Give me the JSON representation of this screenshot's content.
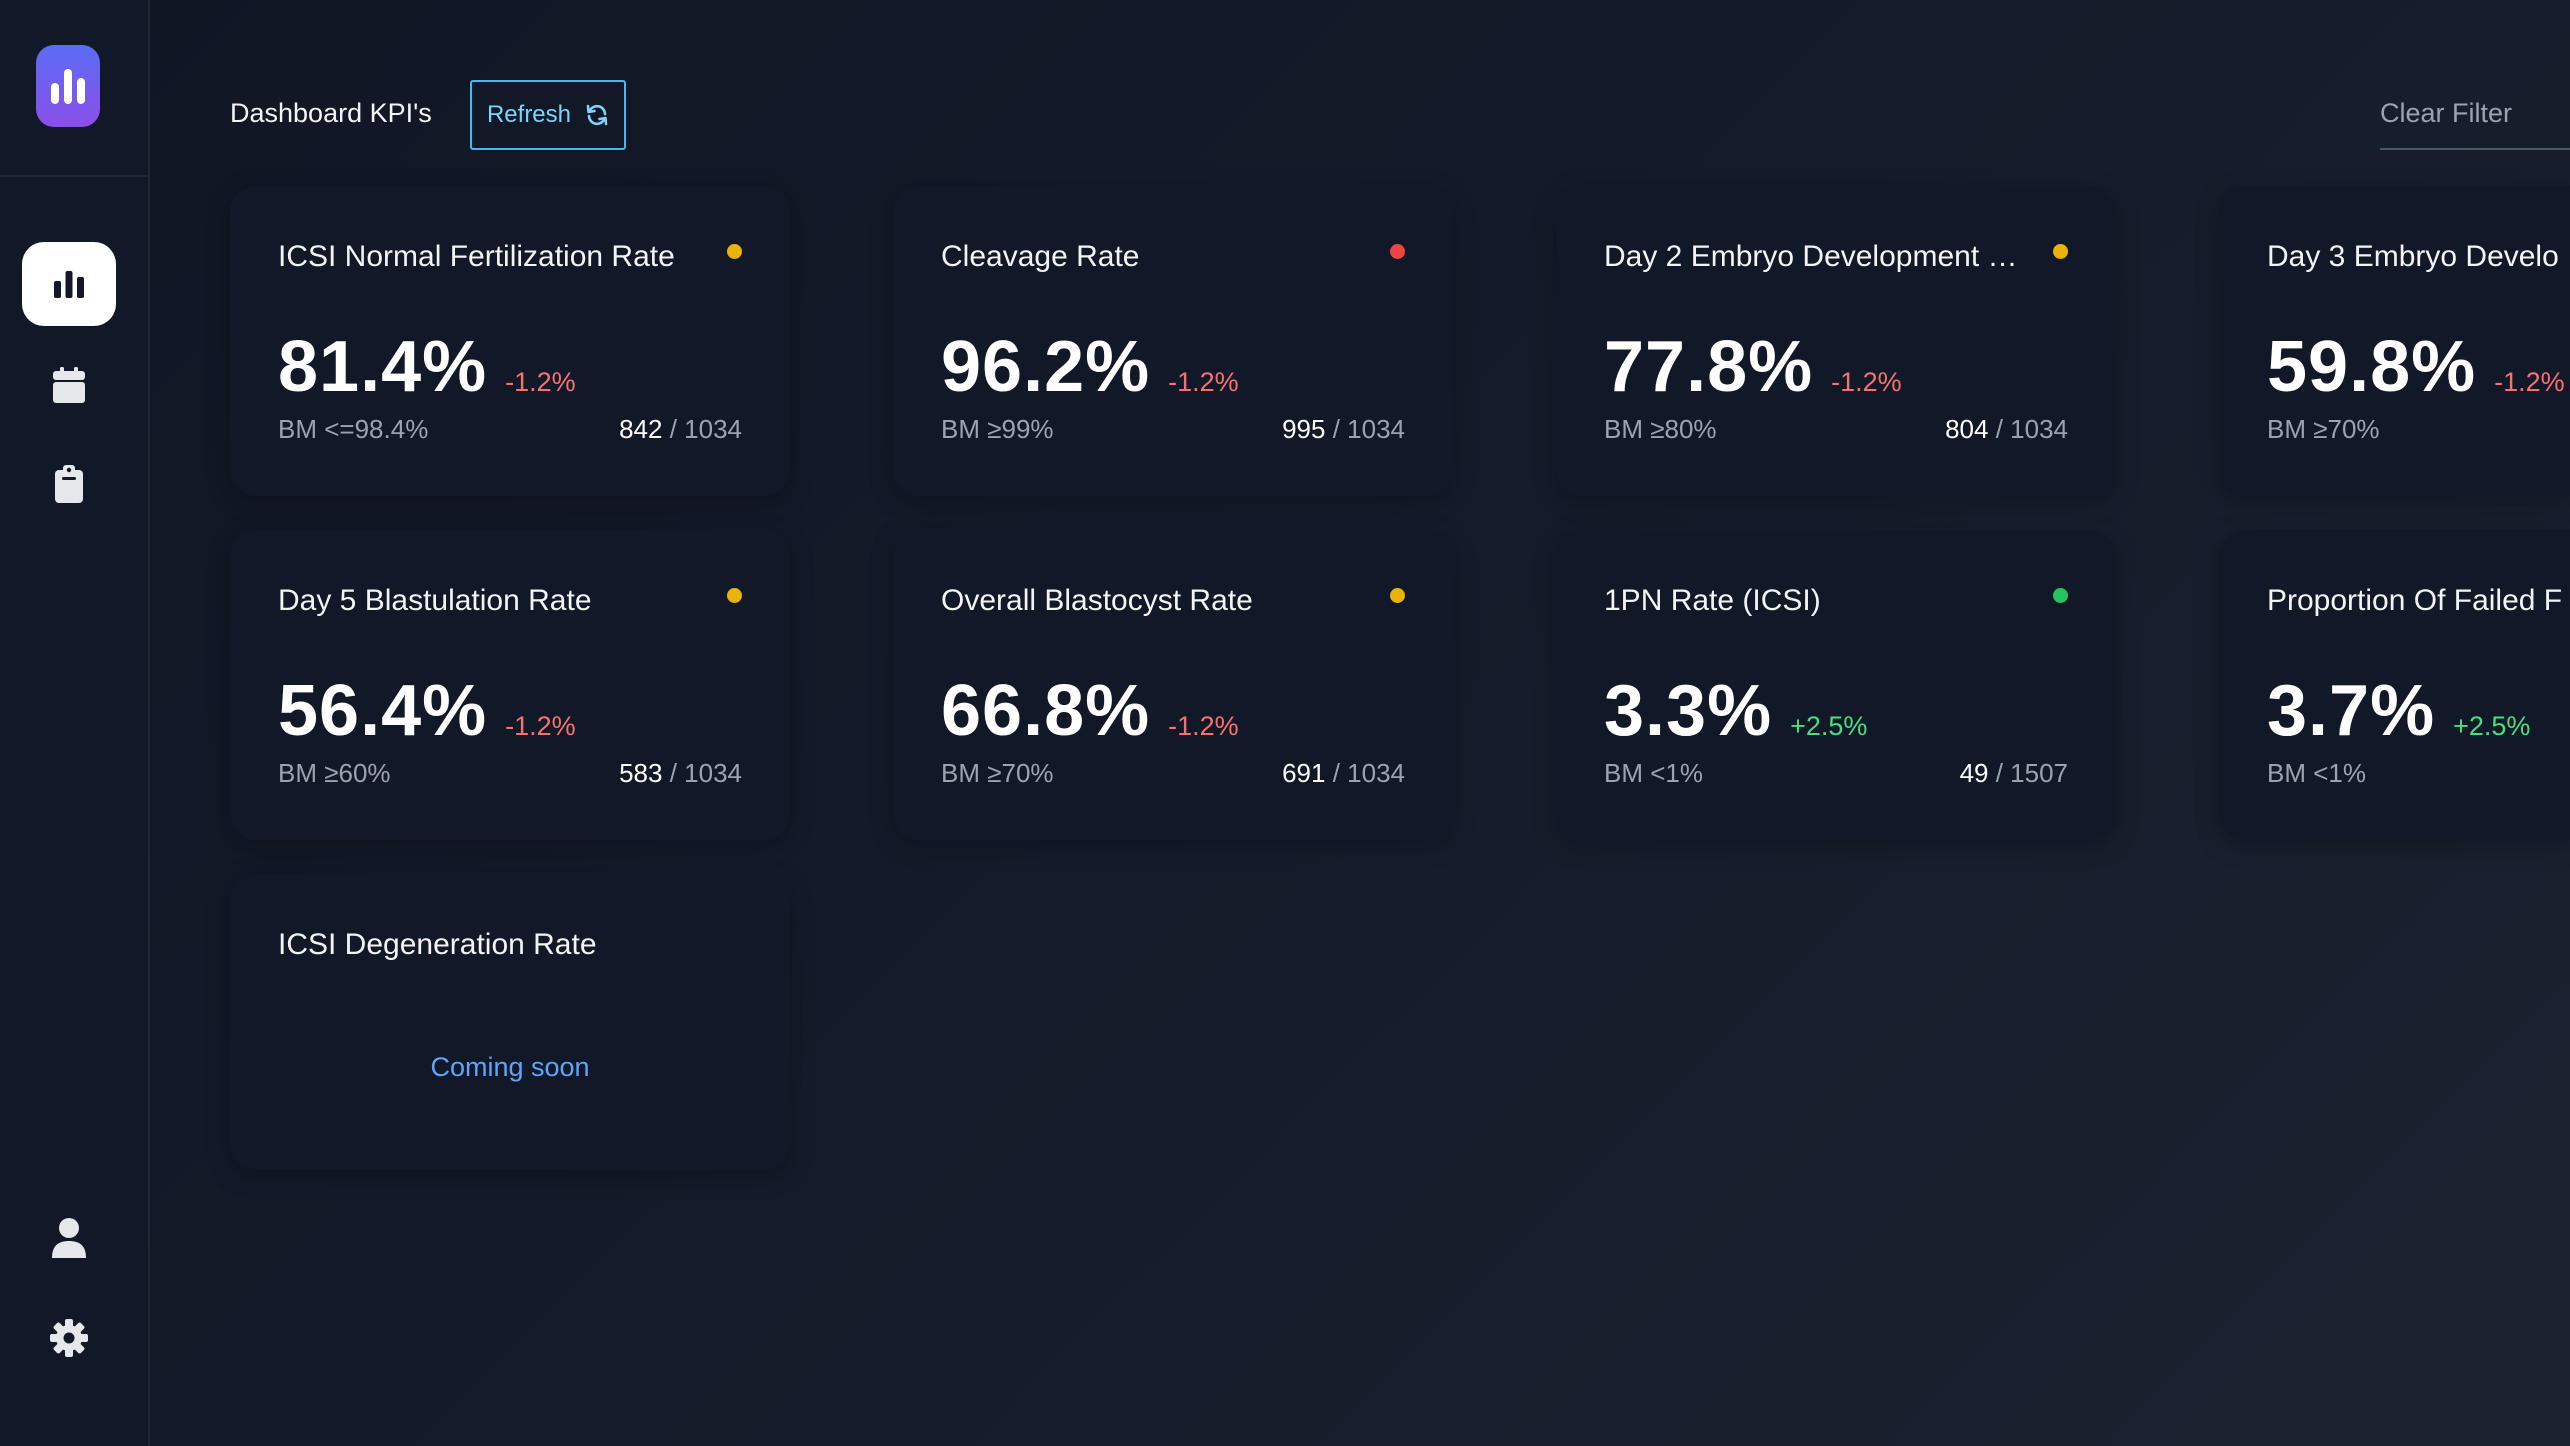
{
  "header": {
    "title": "Dashboard KPI's",
    "refresh_label": "Refresh",
    "clear_filter_label": "Clear Filter"
  },
  "sidebar": {
    "items": [
      {
        "name": "analytics",
        "icon": "bar-chart-icon",
        "active": true
      },
      {
        "name": "calendar",
        "icon": "calendar-icon",
        "active": false
      },
      {
        "name": "clipboard",
        "icon": "clipboard-icon",
        "active": false
      }
    ],
    "bottom_items": [
      {
        "name": "profile",
        "icon": "user-icon"
      },
      {
        "name": "settings",
        "icon": "gear-icon"
      }
    ]
  },
  "colors": {
    "accent": "#38bdf8",
    "negative": "#f87171",
    "positive": "#4ade80",
    "status_warning": "#eab308",
    "status_bad": "#ef4444",
    "status_good": "#22c55e",
    "coming_soon": "#60a5fa"
  },
  "cards": [
    {
      "title": "ICSI Normal Fertilization Rate",
      "status": "warning",
      "value": "81.4%",
      "change": "-1.2%",
      "trend": "negative",
      "bm": "BM <=98.4%",
      "numerator": "842",
      "denominator": " / 1034"
    },
    {
      "title": "Cleavage Rate",
      "status": "bad",
      "value": "96.2%",
      "change": "-1.2%",
      "trend": "negative",
      "bm": "BM ≥99%",
      "numerator": "995",
      "denominator": " / 1034"
    },
    {
      "title": "Day 2 Embryo Development …",
      "status": "warning",
      "value": "77.8%",
      "change": "-1.2%",
      "trend": "negative",
      "bm": "BM ≥80%",
      "numerator": "804",
      "denominator": " / 1034"
    },
    {
      "title": "Day 3 Embryo Develo",
      "status": "",
      "value": "59.8%",
      "change": "-1.2%",
      "trend": "negative",
      "bm": "BM ≥70%",
      "numerator": "",
      "denominator": ""
    },
    {
      "title": "Day 5 Blastulation Rate",
      "status": "warning",
      "value": "56.4%",
      "change": "-1.2%",
      "trend": "negative",
      "bm": "BM ≥60%",
      "numerator": "583",
      "denominator": " / 1034"
    },
    {
      "title": "Overall Blastocyst Rate",
      "status": "warning",
      "value": "66.8%",
      "change": "-1.2%",
      "trend": "negative",
      "bm": "BM ≥70%",
      "numerator": "691",
      "denominator": " / 1034"
    },
    {
      "title": "1PN Rate (ICSI)",
      "status": "good",
      "value": "3.3%",
      "change": "+2.5%",
      "trend": "positive",
      "bm": "BM <1%",
      "numerator": "49",
      "denominator": " / 1507"
    },
    {
      "title": "Proportion Of Failed F",
      "status": "",
      "value": "3.7%",
      "change": "+2.5%",
      "trend": "positive",
      "bm": "BM <1%",
      "numerator": "",
      "denominator": ""
    },
    {
      "title": "ICSI Degeneration Rate",
      "status": "",
      "coming_soon": "Coming soon"
    }
  ]
}
